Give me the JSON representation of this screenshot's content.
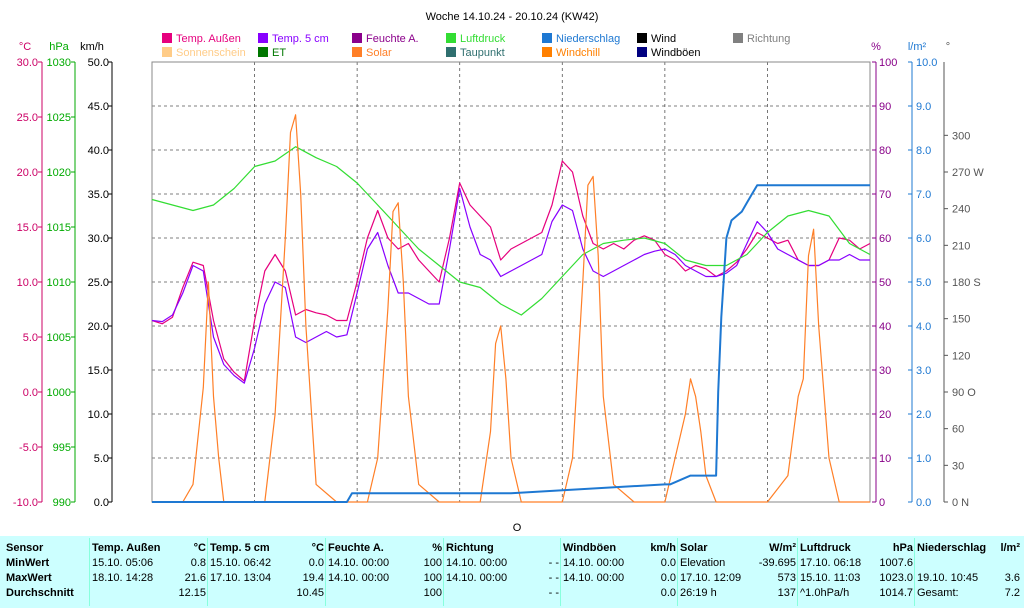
{
  "title": "Woche 14.10.24 - 20.10.24 (KW42)",
  "chart_data": {
    "type": "line",
    "title": "Woche 14.10.24 - 20.10.24 (KW42)",
    "legend_placement": "top",
    "axis_units": {
      "temp": "°C",
      "pressure": "hPa",
      "speed": "km/h",
      "humidity": "%",
      "rain": "l/m²",
      "direction": "°"
    },
    "axes": {
      "temp": {
        "min": -10,
        "max": 30,
        "color": "#cc0066"
      },
      "pressure": {
        "min": 990,
        "max": 1030,
        "color": "#00aa00"
      },
      "speed": {
        "min": 0,
        "max": 50,
        "color": "#000000"
      },
      "humidity": {
        "min": 0,
        "max": 100,
        "color": "#880088"
      },
      "rain": {
        "min": 0,
        "max": 10,
        "color": "#1e78d2"
      },
      "direction": {
        "min": 0,
        "max": 360,
        "color": "#555555"
      }
    },
    "ticks": {
      "temp": [
        "30.0",
        "25.0",
        "20.0",
        "15.0",
        "10.0",
        "5.0",
        "0.0",
        "-5.0",
        "-10.0"
      ],
      "pressure": [
        "1030",
        "1025",
        "1020",
        "1015",
        "1010",
        "1005",
        "1000",
        "995",
        "990"
      ],
      "speed": [
        "50.0",
        "45.0",
        "40.0",
        "35.0",
        "30.0",
        "25.0",
        "20.0",
        "15.0",
        "10.0",
        "5.0",
        "0.0"
      ],
      "humidity": [
        "100",
        "90",
        "80",
        "70",
        "60",
        "50",
        "40",
        "30",
        "20",
        "10",
        "0"
      ],
      "rain": [
        "10.0",
        "9.0",
        "8.0",
        "7.0",
        "6.0",
        "5.0",
        "4.0",
        "3.0",
        "2.0",
        "1.0",
        "0.0"
      ],
      "direction": [
        {
          "v": 300,
          "t": "300"
        },
        {
          "v": 270,
          "t": "270 W"
        },
        {
          "v": 240,
          "t": "240"
        },
        {
          "v": 210,
          "t": "210"
        },
        {
          "v": 180,
          "t": "180 S"
        },
        {
          "v": 150,
          "t": "150"
        },
        {
          "v": 120,
          "t": "120"
        },
        {
          "v": 90,
          "t": "90  O"
        },
        {
          "v": 60,
          "t": "60"
        },
        {
          "v": 30,
          "t": "30"
        },
        {
          "v": 0,
          "t": "0   N"
        }
      ]
    },
    "legend": [
      {
        "name": "Temp. Außen",
        "color": "#e6007e"
      },
      {
        "name": "Temp. 5 cm",
        "color": "#8800ff"
      },
      {
        "name": "Feuchte A.",
        "color": "#8b008b"
      },
      {
        "name": "Luftdruck",
        "color": "#33dd33"
      },
      {
        "name": "Niederschlag",
        "color": "#1e78d2"
      },
      {
        "name": "Wind",
        "color": "#000000"
      },
      {
        "name": "Richtung",
        "color": "#808080"
      },
      {
        "name": "Sonnenschein",
        "color": "#ffcc88"
      },
      {
        "name": "ET",
        "color": "#007700"
      },
      {
        "name": "Solar",
        "color": "#ff7f27"
      },
      {
        "name": "Taupunkt",
        "color": "#2f6f6f"
      },
      {
        "name": "Windchill",
        "color": "#ff8000"
      },
      {
        "name": "Windböen",
        "color": "#000080"
      }
    ],
    "x_range_days": [
      0,
      7
    ],
    "series": [
      {
        "name": "Temp. Außen",
        "axis": "temp",
        "color": "#e6007e",
        "x": [
          0,
          0.1,
          0.2,
          0.3,
          0.4,
          0.5,
          0.6,
          0.7,
          0.8,
          0.9,
          1.0,
          1.1,
          1.2,
          1.3,
          1.4,
          1.5,
          1.6,
          1.7,
          1.8,
          1.9,
          2.0,
          2.1,
          2.2,
          2.3,
          2.4,
          2.5,
          2.6,
          2.7,
          2.8,
          2.9,
          3.0,
          3.1,
          3.2,
          3.3,
          3.4,
          3.5,
          3.6,
          3.7,
          3.8,
          3.9,
          4.0,
          4.1,
          4.2,
          4.3,
          4.4,
          4.5,
          4.6,
          4.7,
          4.8,
          4.9,
          5.0,
          5.1,
          5.2,
          5.3,
          5.4,
          5.5,
          5.6,
          5.7,
          5.8,
          5.9,
          6.0,
          6.1,
          6.2,
          6.3,
          6.4,
          6.5,
          6.6,
          6.7,
          6.8,
          6.9,
          7.0
        ],
        "y": [
          6.5,
          6.2,
          6.8,
          9.5,
          11.8,
          11.5,
          6.5,
          3.0,
          1.8,
          1.0,
          6.5,
          11.0,
          12.5,
          11.0,
          7.0,
          7.5,
          7.2,
          7.0,
          6.5,
          6.5,
          10.0,
          14.0,
          16.5,
          14.0,
          13.0,
          13.5,
          12.0,
          11.0,
          10.0,
          14.0,
          19.0,
          17.0,
          16.0,
          15.0,
          12.0,
          13.0,
          13.5,
          14.0,
          14.5,
          17.0,
          21.0,
          20.0,
          16.0,
          13.5,
          13.0,
          13.5,
          13.0,
          13.8,
          14.2,
          13.8,
          12.5,
          12.0,
          11.0,
          11.5,
          11.2,
          10.5,
          11.0,
          11.8,
          13.0,
          14.5,
          14.0,
          13.5,
          13.8,
          12.0,
          11.5,
          11.5,
          12.0,
          14.0,
          13.8,
          13.0,
          13.5
        ]
      },
      {
        "name": "Temp. 5 cm",
        "axis": "temp",
        "color": "#8800ff",
        "x": [
          0,
          0.1,
          0.2,
          0.3,
          0.4,
          0.5,
          0.6,
          0.7,
          0.8,
          0.9,
          1.0,
          1.1,
          1.2,
          1.3,
          1.4,
          1.5,
          1.6,
          1.7,
          1.8,
          1.9,
          2.0,
          2.1,
          2.2,
          2.3,
          2.4,
          2.5,
          2.6,
          2.7,
          2.8,
          2.9,
          3.0,
          3.1,
          3.2,
          3.3,
          3.4,
          3.5,
          3.6,
          3.7,
          3.8,
          3.9,
          4.0,
          4.1,
          4.2,
          4.3,
          4.4,
          4.5,
          4.6,
          4.7,
          4.8,
          4.9,
          5.0,
          5.1,
          5.2,
          5.3,
          5.4,
          5.5,
          5.6,
          5.7,
          5.8,
          5.9,
          6.0,
          6.1,
          6.2,
          6.3,
          6.4,
          6.5,
          6.6,
          6.7,
          6.8,
          6.9,
          7.0
        ],
        "y": [
          6.5,
          6.4,
          7.0,
          9.0,
          11.5,
          11.0,
          5.0,
          2.5,
          1.5,
          0.8,
          4.0,
          8.0,
          10.0,
          9.5,
          5.0,
          4.5,
          5.0,
          5.5,
          5.0,
          5.2,
          9.0,
          13.0,
          14.5,
          11.5,
          9.0,
          9.0,
          8.5,
          8.0,
          8.0,
          13.0,
          18.5,
          15.0,
          12.5,
          12.0,
          10.5,
          11.0,
          11.5,
          12.0,
          12.5,
          15.5,
          17.0,
          16.5,
          13.0,
          11.0,
          10.5,
          11.0,
          11.5,
          12.0,
          12.5,
          12.8,
          13.0,
          12.5,
          11.5,
          11.0,
          10.5,
          10.5,
          10.8,
          11.5,
          13.5,
          15.5,
          14.5,
          13.0,
          12.5,
          12.0,
          11.5,
          11.5,
          12.0,
          12.0,
          12.5,
          12.0,
          12.0
        ]
      },
      {
        "name": "Luftdruck",
        "axis": "pressure",
        "color": "#33dd33",
        "x": [
          0,
          0.2,
          0.4,
          0.6,
          0.8,
          1.0,
          1.2,
          1.4,
          1.6,
          1.8,
          2.0,
          2.2,
          2.4,
          2.6,
          2.8,
          3.0,
          3.2,
          3.4,
          3.6,
          3.8,
          4.0,
          4.2,
          4.4,
          4.6,
          4.8,
          5.0,
          5.2,
          5.4,
          5.6,
          5.8,
          6.0,
          6.2,
          6.4,
          6.6,
          6.8,
          7.0
        ],
        "y": [
          1017.5,
          1017.0,
          1016.5,
          1017.0,
          1018.5,
          1020.5,
          1021.0,
          1022.3,
          1021.3,
          1020.5,
          1019.0,
          1017.0,
          1015.0,
          1013.0,
          1011.5,
          1010.0,
          1009.5,
          1008.0,
          1007.0,
          1008.5,
          1010.5,
          1012.5,
          1013.5,
          1013.8,
          1014.0,
          1013.5,
          1012.0,
          1011.5,
          1011.5,
          1012.5,
          1014.5,
          1016.0,
          1016.5,
          1016.0,
          1013.5,
          1012.5
        ]
      },
      {
        "name": "Solar",
        "axis": "speed",
        "color": "#ff7f27",
        "x": [
          0,
          0.3,
          0.4,
          0.5,
          0.55,
          0.6,
          0.65,
          0.7,
          0.8,
          1.0,
          1.1,
          1.2,
          1.3,
          1.35,
          1.4,
          1.45,
          1.5,
          1.6,
          1.8,
          2.1,
          2.2,
          2.3,
          2.35,
          2.4,
          2.45,
          2.5,
          2.6,
          2.8,
          3.2,
          3.3,
          3.35,
          3.4,
          3.45,
          3.5,
          3.6,
          3.8,
          4.0,
          4.1,
          4.2,
          4.25,
          4.3,
          4.35,
          4.4,
          4.5,
          4.7,
          5.0,
          5.1,
          5.2,
          5.25,
          5.3,
          5.35,
          5.4,
          5.5,
          5.7,
          6.0,
          6.2,
          6.3,
          6.35,
          6.4,
          6.45,
          6.5,
          6.6,
          6.7,
          7.0
        ],
        "y": [
          0,
          0,
          2,
          13,
          25,
          12,
          5,
          0,
          0,
          0,
          0,
          10,
          30,
          42,
          44,
          35,
          20,
          2,
          0,
          0,
          5,
          22,
          33,
          34,
          25,
          12,
          2,
          0,
          0,
          8,
          18,
          20,
          14,
          5,
          0,
          0,
          0,
          5,
          25,
          36,
          37,
          28,
          12,
          2,
          0,
          0,
          5,
          10,
          14,
          12,
          8,
          3,
          0,
          0,
          0,
          3,
          12,
          14,
          28,
          31,
          20,
          5,
          0,
          0
        ]
      },
      {
        "name": "Niederschlag",
        "axis": "rain",
        "color": "#1e78d2",
        "x": [
          0,
          1.9,
          1.95,
          3.5,
          5.0,
          5.05,
          5.25,
          5.5,
          5.52,
          5.55,
          5.6,
          5.65,
          5.75,
          5.8,
          5.85,
          5.9,
          6.0,
          7.0
        ],
        "y": [
          0,
          0,
          0.2,
          0.2,
          0.4,
          0.4,
          0.6,
          0.6,
          2.5,
          4.2,
          6.0,
          6.4,
          6.6,
          6.8,
          7.0,
          7.2,
          7.2,
          7.2
        ]
      }
    ]
  },
  "stats": {
    "columns": [
      {
        "header": "Sensor",
        "unit": "",
        "rows": [
          "MinWert",
          "MaxWert",
          "Durchschnitt"
        ],
        "values": [
          "",
          "",
          ""
        ]
      },
      {
        "header": "Temp. Außen",
        "unit": "°C",
        "rows": [
          "15.10.  05:06",
          "18.10.  14:28",
          ""
        ],
        "values": [
          "0.8",
          "21.6",
          "12.15"
        ]
      },
      {
        "header": "Temp. 5 cm",
        "unit": "°C",
        "rows": [
          "15.10.  06:42",
          "17.10.  13:04",
          ""
        ],
        "values": [
          "0.0",
          "19.4",
          "10.45"
        ]
      },
      {
        "header": "Feuchte A.",
        "unit": "%",
        "rows": [
          "14.10.  00:00",
          "14.10.  00:00",
          ""
        ],
        "values": [
          "100",
          "100",
          "100"
        ]
      },
      {
        "header": "Richtung",
        "unit": "",
        "rows": [
          "14.10.  00:00",
          "14.10.  00:00",
          ""
        ],
        "values": [
          "- -",
          "- -",
          "- -"
        ]
      },
      {
        "header": "Windböen",
        "unit": "km/h",
        "rows": [
          "14.10.  00:00",
          "14.10.  00:00",
          ""
        ],
        "values": [
          "0.0",
          "0.0",
          "0.0"
        ]
      },
      {
        "header": "Solar",
        "unit": "W/m²",
        "rows": [
          "Elevation",
          "17.10.  12:09",
          "26:19 h"
        ],
        "values": [
          "-39.695",
          "573",
          "137"
        ]
      },
      {
        "header": "Luftdruck",
        "unit": "hPa",
        "rows": [
          "17.10.  06:18",
          "15.10.  11:03",
          "^1.0hPa/h"
        ],
        "values": [
          "1007.6",
          "1023.0",
          "1014.7"
        ]
      },
      {
        "header": "Niederschlag",
        "unit": "l/m²",
        "rows": [
          "",
          "19.10.  10:45",
          "Gesamt:"
        ],
        "values": [
          "",
          "3.6",
          "7.2"
        ]
      }
    ]
  }
}
